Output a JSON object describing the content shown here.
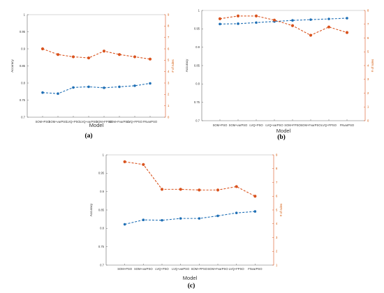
{
  "colors": {
    "accuracy": "#1f6fb5",
    "rules": "#d9531e",
    "axis": "#555555"
  },
  "chart_data": [
    {
      "type": "line",
      "caption": "(a)",
      "xlabel": "Model",
      "ylabel": "Accuracy",
      "y2label": "# of rules",
      "categories": [
        "SOM+PSO",
        "SOM+varPSO",
        "LVQ+PSO",
        "LVQ+varPSO",
        "SOM+FPSO",
        "SOM+FvarPSO",
        "LVQ+FPSO",
        "FNvarPSO"
      ],
      "ylim": [
        0.7,
        1
      ],
      "yticks": [
        0.7,
        0.75,
        0.8,
        0.85,
        0.9,
        0.95,
        1
      ],
      "y2lim": [
        0,
        9
      ],
      "y2ticks": [
        0,
        1,
        2,
        3,
        4,
        5,
        6,
        7,
        8,
        9
      ],
      "series": [
        {
          "name": "Accuracy",
          "axis": "left",
          "values": [
            0.772,
            0.769,
            0.787,
            0.789,
            0.786,
            0.789,
            0.792,
            0.799
          ]
        },
        {
          "name": "# of rules",
          "axis": "right",
          "values": [
            6.0,
            5.5,
            5.3,
            5.2,
            5.8,
            5.5,
            5.3,
            5.1
          ]
        }
      ]
    },
    {
      "type": "line",
      "caption": "(b)",
      "xlabel": "Model",
      "ylabel": "Accuracy",
      "y2label": "# of rules",
      "categories": [
        "SOM+PSO",
        "SOM+varPSO",
        "LVQ+PSO",
        "LVQ+varPSO",
        "SOM+FPSO",
        "SOM+FvarPSO",
        "LVQ+FPSO",
        "FNvarPSO"
      ],
      "ylim": [
        0.7,
        1
      ],
      "yticks": [
        0.7,
        0.75,
        0.8,
        0.85,
        0.9,
        0.95,
        1
      ],
      "y2lim": [
        0,
        8
      ],
      "y2ticks": [
        0,
        1,
        2,
        3,
        4,
        5,
        6,
        7,
        8
      ],
      "series": [
        {
          "name": "Accuracy",
          "axis": "left",
          "values": [
            0.963,
            0.964,
            0.967,
            0.97,
            0.973,
            0.975,
            0.977,
            0.979
          ]
        },
        {
          "name": "# of rules",
          "axis": "right",
          "values": [
            7.4,
            7.6,
            7.6,
            7.3,
            6.9,
            6.2,
            6.8,
            6.4
          ]
        }
      ]
    },
    {
      "type": "line",
      "caption": "(c)",
      "xlabel": "Model",
      "ylabel": "Accuracy",
      "y2label": "# of rules",
      "categories": [
        "SOM+PSO",
        "SOM+varPSO",
        "LVQ+PSO",
        "LVQ+varPSO",
        "SOM+FPSO",
        "SOM+FvarPSO",
        "LVQ+FPSO",
        "FNvarPSO"
      ],
      "ylim": [
        0.7,
        1
      ],
      "yticks": [
        0.7,
        0.75,
        0.8,
        0.85,
        0.9,
        0.95,
        1
      ],
      "y2lim": [
        1,
        9
      ],
      "y2ticks": [
        1,
        2,
        3,
        4,
        5,
        6,
        7,
        8,
        9
      ],
      "series": [
        {
          "name": "Accuracy",
          "axis": "left",
          "values": [
            0.811,
            0.823,
            0.822,
            0.827,
            0.827,
            0.834,
            0.842,
            0.846
          ]
        },
        {
          "name": "# of rules",
          "axis": "right",
          "values": [
            8.5,
            8.3,
            6.5,
            6.5,
            6.45,
            6.45,
            6.7,
            6.0
          ]
        }
      ]
    }
  ]
}
